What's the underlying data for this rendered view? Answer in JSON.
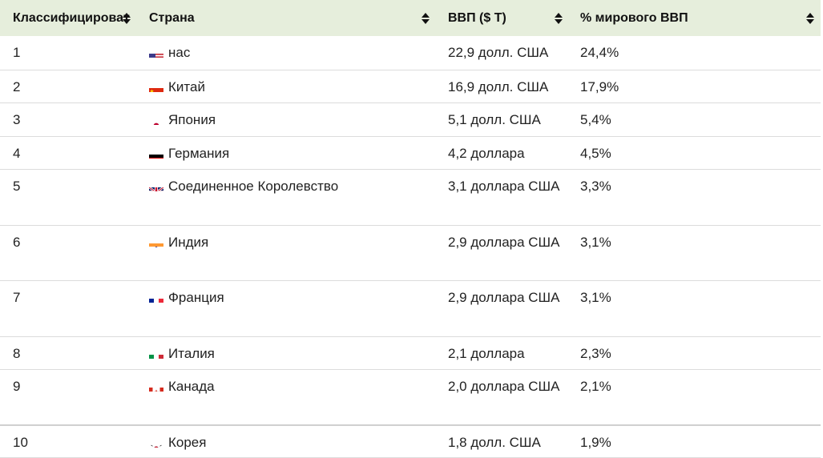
{
  "header": {
    "rank": "Классифицироват",
    "country": "Страна",
    "gdp": "ВВП ($ Т)",
    "share": "% мирового ВВП"
  },
  "rows": [
    {
      "rank": "1",
      "country": "нас",
      "gdp": "22,9 долл. США",
      "share": "24,4%",
      "flag": "us-flag-icon"
    },
    {
      "rank": "2",
      "country": "Китай",
      "gdp": "16,9 долл. США",
      "share": "17,9%",
      "flag": "cn-flag-icon"
    },
    {
      "rank": "3",
      "country": "Япония",
      "gdp": "5,1 долл. США",
      "share": "5,4%",
      "flag": "jp-flag-icon"
    },
    {
      "rank": "4",
      "country": "Германия",
      "gdp": "4,2 доллара",
      "share": "4,5%",
      "flag": "de-flag-icon"
    },
    {
      "rank": "5",
      "country": "Соединенное Королевство",
      "gdp": "3,1 доллара США",
      "share": "3,3%",
      "flag": "gb-flag-icon"
    },
    {
      "rank": "6",
      "country": "Индия",
      "gdp": "2,9 доллара США",
      "share": "3,1%",
      "flag": "in-flag-icon"
    },
    {
      "rank": "7",
      "country": "Франция",
      "gdp": "2,9 доллара США",
      "share": "3,1%",
      "flag": "fr-flag-icon"
    },
    {
      "rank": "8",
      "country": "Италия",
      "gdp": "2,1 доллара",
      "share": "2,3%",
      "flag": "it-flag-icon"
    },
    {
      "rank": "9",
      "country": "Канада",
      "gdp": "2,0 доллара США",
      "share": "2,1%",
      "flag": "ca-flag-icon"
    },
    {
      "rank": "10",
      "country": "Корея",
      "gdp": "1,8 долл. США",
      "share": "1,9%",
      "flag": "kr-flag-icon"
    }
  ],
  "colors": {
    "header_bg": "#e6eedc",
    "row_border": "#dcdcdc"
  }
}
